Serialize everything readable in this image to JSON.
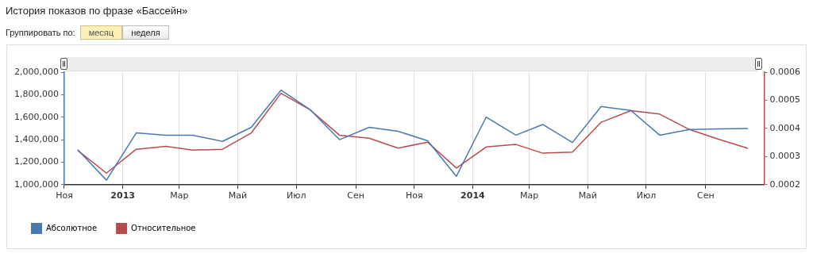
{
  "chart_data": {
    "type": "line",
    "title": "История показов по фразе «Бассейн»",
    "annotations": [
      "Группировать по:",
      "месяц",
      "неделя"
    ],
    "x": [
      "2012-11-15",
      "2012-12-15",
      "2013-01-15",
      "2013-02-15",
      "2013-03-15",
      "2013-04-15",
      "2013-05-15",
      "2013-06-15",
      "2013-07-15",
      "2013-08-15",
      "2013-09-15",
      "2013-10-15",
      "2013-11-15",
      "2013-12-15",
      "2014-01-15",
      "2014-02-15",
      "2014-03-15",
      "2014-04-15",
      "2014-05-15",
      "2014-06-15",
      "2014-07-15",
      "2014-08-15",
      "2014-09-15",
      "2014-10-15"
    ],
    "series": [
      {
        "name": "Абсолютное",
        "color": "#4a78b0",
        "values": [
          1310000,
          1040000,
          1460000,
          1440000,
          1440000,
          1385000,
          1510000,
          1840000,
          1670000,
          1400000,
          1510000,
          1475000,
          1390000,
          1075000,
          1600000,
          1440000,
          1535000,
          1375000,
          1695000,
          1660000,
          1440000,
          1490000,
          1495000,
          1500000
        ]
      },
      {
        "name": "Относительное",
        "color": "#b84c4c",
        "axis": "y2",
        "values": [
          0.000322,
          0.000241,
          0.000326,
          0.000336,
          0.000323,
          0.000326,
          0.000384,
          0.000525,
          0.000467,
          0.000376,
          0.000365,
          0.00033,
          0.000351,
          0.000259,
          0.000334,
          0.000343,
          0.000312,
          0.000316,
          0.000422,
          0.000463,
          0.000451,
          0.000396,
          0.000361,
          0.000329
        ]
      }
    ],
    "xlim": [
      "2012-11-01",
      "2014-11-01"
    ],
    "xticks": [
      {
        "value": "2012-11-01",
        "label": "Ноя"
      },
      {
        "value": "2013-01-01",
        "label": "2013"
      },
      {
        "value": "2013-03-01",
        "label": "Мар"
      },
      {
        "value": "2013-05-01",
        "label": "Май"
      },
      {
        "value": "2013-07-01",
        "label": "Июл"
      },
      {
        "value": "2013-09-01",
        "label": "Сен"
      },
      {
        "value": "2013-11-01",
        "label": "Ноя"
      },
      {
        "value": "2014-01-01",
        "label": "2014"
      },
      {
        "value": "2014-03-01",
        "label": "Мар"
      },
      {
        "value": "2014-05-01",
        "label": "Май"
      },
      {
        "value": "2014-07-01",
        "label": "Июл"
      },
      {
        "value": "2014-09-01",
        "label": "Сен"
      }
    ],
    "ylim": [
      1000000,
      2000000
    ],
    "yticks": [
      {
        "value": 1000000,
        "label": "1,000,000"
      },
      {
        "value": 1200000,
        "label": "1,200,000"
      },
      {
        "value": 1400000,
        "label": "1,400,000"
      },
      {
        "value": 1600000,
        "label": "1,600,000"
      },
      {
        "value": 1800000,
        "label": "1,800,000"
      },
      {
        "value": 2000000,
        "label": "2,000,000"
      }
    ],
    "y2lim": [
      0.0002,
      0.0006
    ],
    "y2ticks": [
      0.0002,
      0.0003,
      0.0004,
      0.0005,
      0.0006
    ],
    "grid": "x",
    "legend": "bottom left",
    "marker": "none",
    "line_style": "solid"
  }
}
